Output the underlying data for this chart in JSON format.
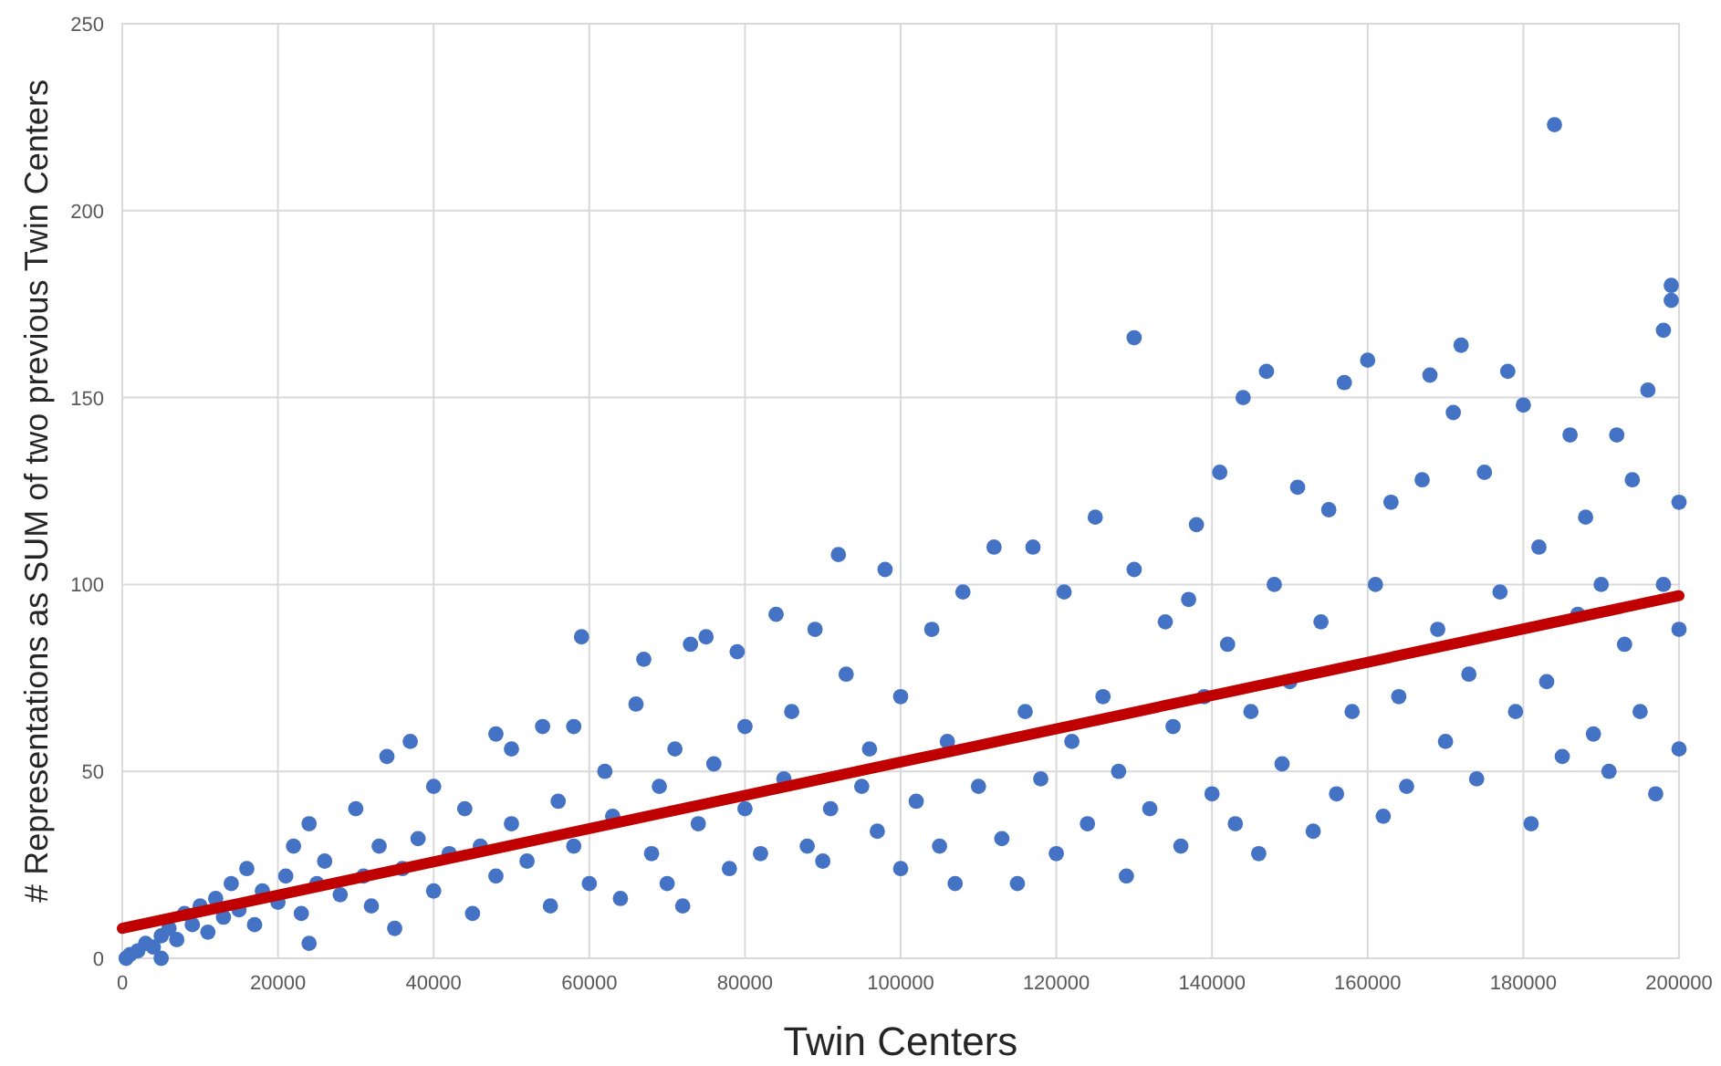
{
  "chart_data": {
    "type": "scatter",
    "xlabel": "Twin Centers",
    "ylabel": "# Representations as SUM of two previous Twin Centers",
    "xlim": [
      0,
      200000
    ],
    "xticks": [
      0,
      20000,
      40000,
      60000,
      80000,
      100000,
      120000,
      140000,
      160000,
      180000,
      200000
    ],
    "ylim": [
      0,
      250
    ],
    "yticks": [
      0,
      50,
      100,
      150,
      200,
      250
    ],
    "grid": true,
    "series": [
      {
        "color": "#4472c4",
        "marker": "circle",
        "x": [
          500,
          1000,
          2000,
          3000,
          4000,
          5000,
          5000,
          6000,
          7000,
          8000,
          9000,
          10000,
          11000,
          12000,
          13000,
          14000,
          15000,
          16000,
          17000,
          18000,
          20000,
          21000,
          22000,
          23000,
          24000,
          24000,
          25000,
          26000,
          28000,
          30000,
          31000,
          32000,
          33000,
          34000,
          35000,
          36000,
          37000,
          38000,
          40000,
          40000,
          42000,
          44000,
          45000,
          46000,
          48000,
          48000,
          50000,
          50000,
          52000,
          54000,
          55000,
          56000,
          58000,
          58000,
          59000,
          60000,
          62000,
          63000,
          64000,
          66000,
          67000,
          68000,
          69000,
          70000,
          71000,
          72000,
          73000,
          74000,
          75000,
          76000,
          78000,
          79000,
          80000,
          80000,
          82000,
          84000,
          85000,
          86000,
          88000,
          89000,
          90000,
          91000,
          92000,
          93000,
          95000,
          96000,
          97000,
          98000,
          100000,
          100000,
          102000,
          104000,
          105000,
          106000,
          107000,
          108000,
          110000,
          112000,
          113000,
          115000,
          116000,
          117000,
          118000,
          120000,
          121000,
          122000,
          124000,
          125000,
          126000,
          128000,
          129000,
          130000,
          130000,
          132000,
          134000,
          135000,
          136000,
          137000,
          138000,
          139000,
          140000,
          141000,
          142000,
          143000,
          144000,
          145000,
          146000,
          147000,
          148000,
          149000,
          150000,
          151000,
          153000,
          154000,
          155000,
          156000,
          157000,
          158000,
          160000,
          161000,
          162000,
          163000,
          164000,
          165000,
          167000,
          168000,
          169000,
          170000,
          171000,
          172000,
          173000,
          174000,
          175000,
          177000,
          178000,
          179000,
          180000,
          181000,
          182000,
          183000,
          184000,
          185000,
          186000,
          187000,
          188000,
          189000,
          190000,
          191000,
          192000,
          193000,
          194000,
          195000,
          196000,
          197000,
          198000,
          198000,
          199000,
          199000,
          200000,
          200000,
          200000
        ],
        "values": [
          0,
          1,
          2,
          4,
          3,
          0,
          6,
          8,
          5,
          12,
          9,
          14,
          7,
          16,
          11,
          20,
          13,
          24,
          9,
          18,
          15,
          22,
          30,
          12,
          4,
          36,
          20,
          26,
          17,
          40,
          22,
          14,
          30,
          54,
          8,
          24,
          58,
          32,
          46,
          18,
          28,
          40,
          12,
          30,
          60,
          22,
          56,
          36,
          26,
          62,
          14,
          42,
          62,
          30,
          86,
          20,
          50,
          38,
          16,
          68,
          80,
          28,
          46,
          20,
          56,
          14,
          84,
          36,
          86,
          52,
          24,
          82,
          40,
          62,
          28,
          92,
          48,
          66,
          30,
          88,
          26,
          40,
          108,
          76,
          46,
          56,
          34,
          104,
          24,
          70,
          42,
          88,
          30,
          58,
          20,
          98,
          46,
          110,
          32,
          20,
          66,
          110,
          48,
          28,
          98,
          58,
          36,
          118,
          70,
          50,
          22,
          166,
          104,
          40,
          90,
          62,
          30,
          96,
          116,
          70,
          44,
          130,
          84,
          36,
          150,
          66,
          28,
          157,
          100,
          52,
          74,
          126,
          34,
          90,
          120,
          44,
          154,
          66,
          160,
          100,
          38,
          122,
          70,
          46,
          128,
          156,
          88,
          58,
          146,
          164,
          76,
          48,
          130,
          98,
          157,
          66,
          148,
          36,
          110,
          74,
          223,
          54,
          140,
          92,
          118,
          60,
          100,
          50,
          140,
          84,
          128,
          66,
          152,
          44,
          168,
          100,
          180,
          176,
          56,
          122,
          88
        ]
      },
      {
        "type": "line",
        "color": "#c00000",
        "x": [
          0,
          200000
        ],
        "values": [
          8,
          97
        ]
      }
    ]
  }
}
